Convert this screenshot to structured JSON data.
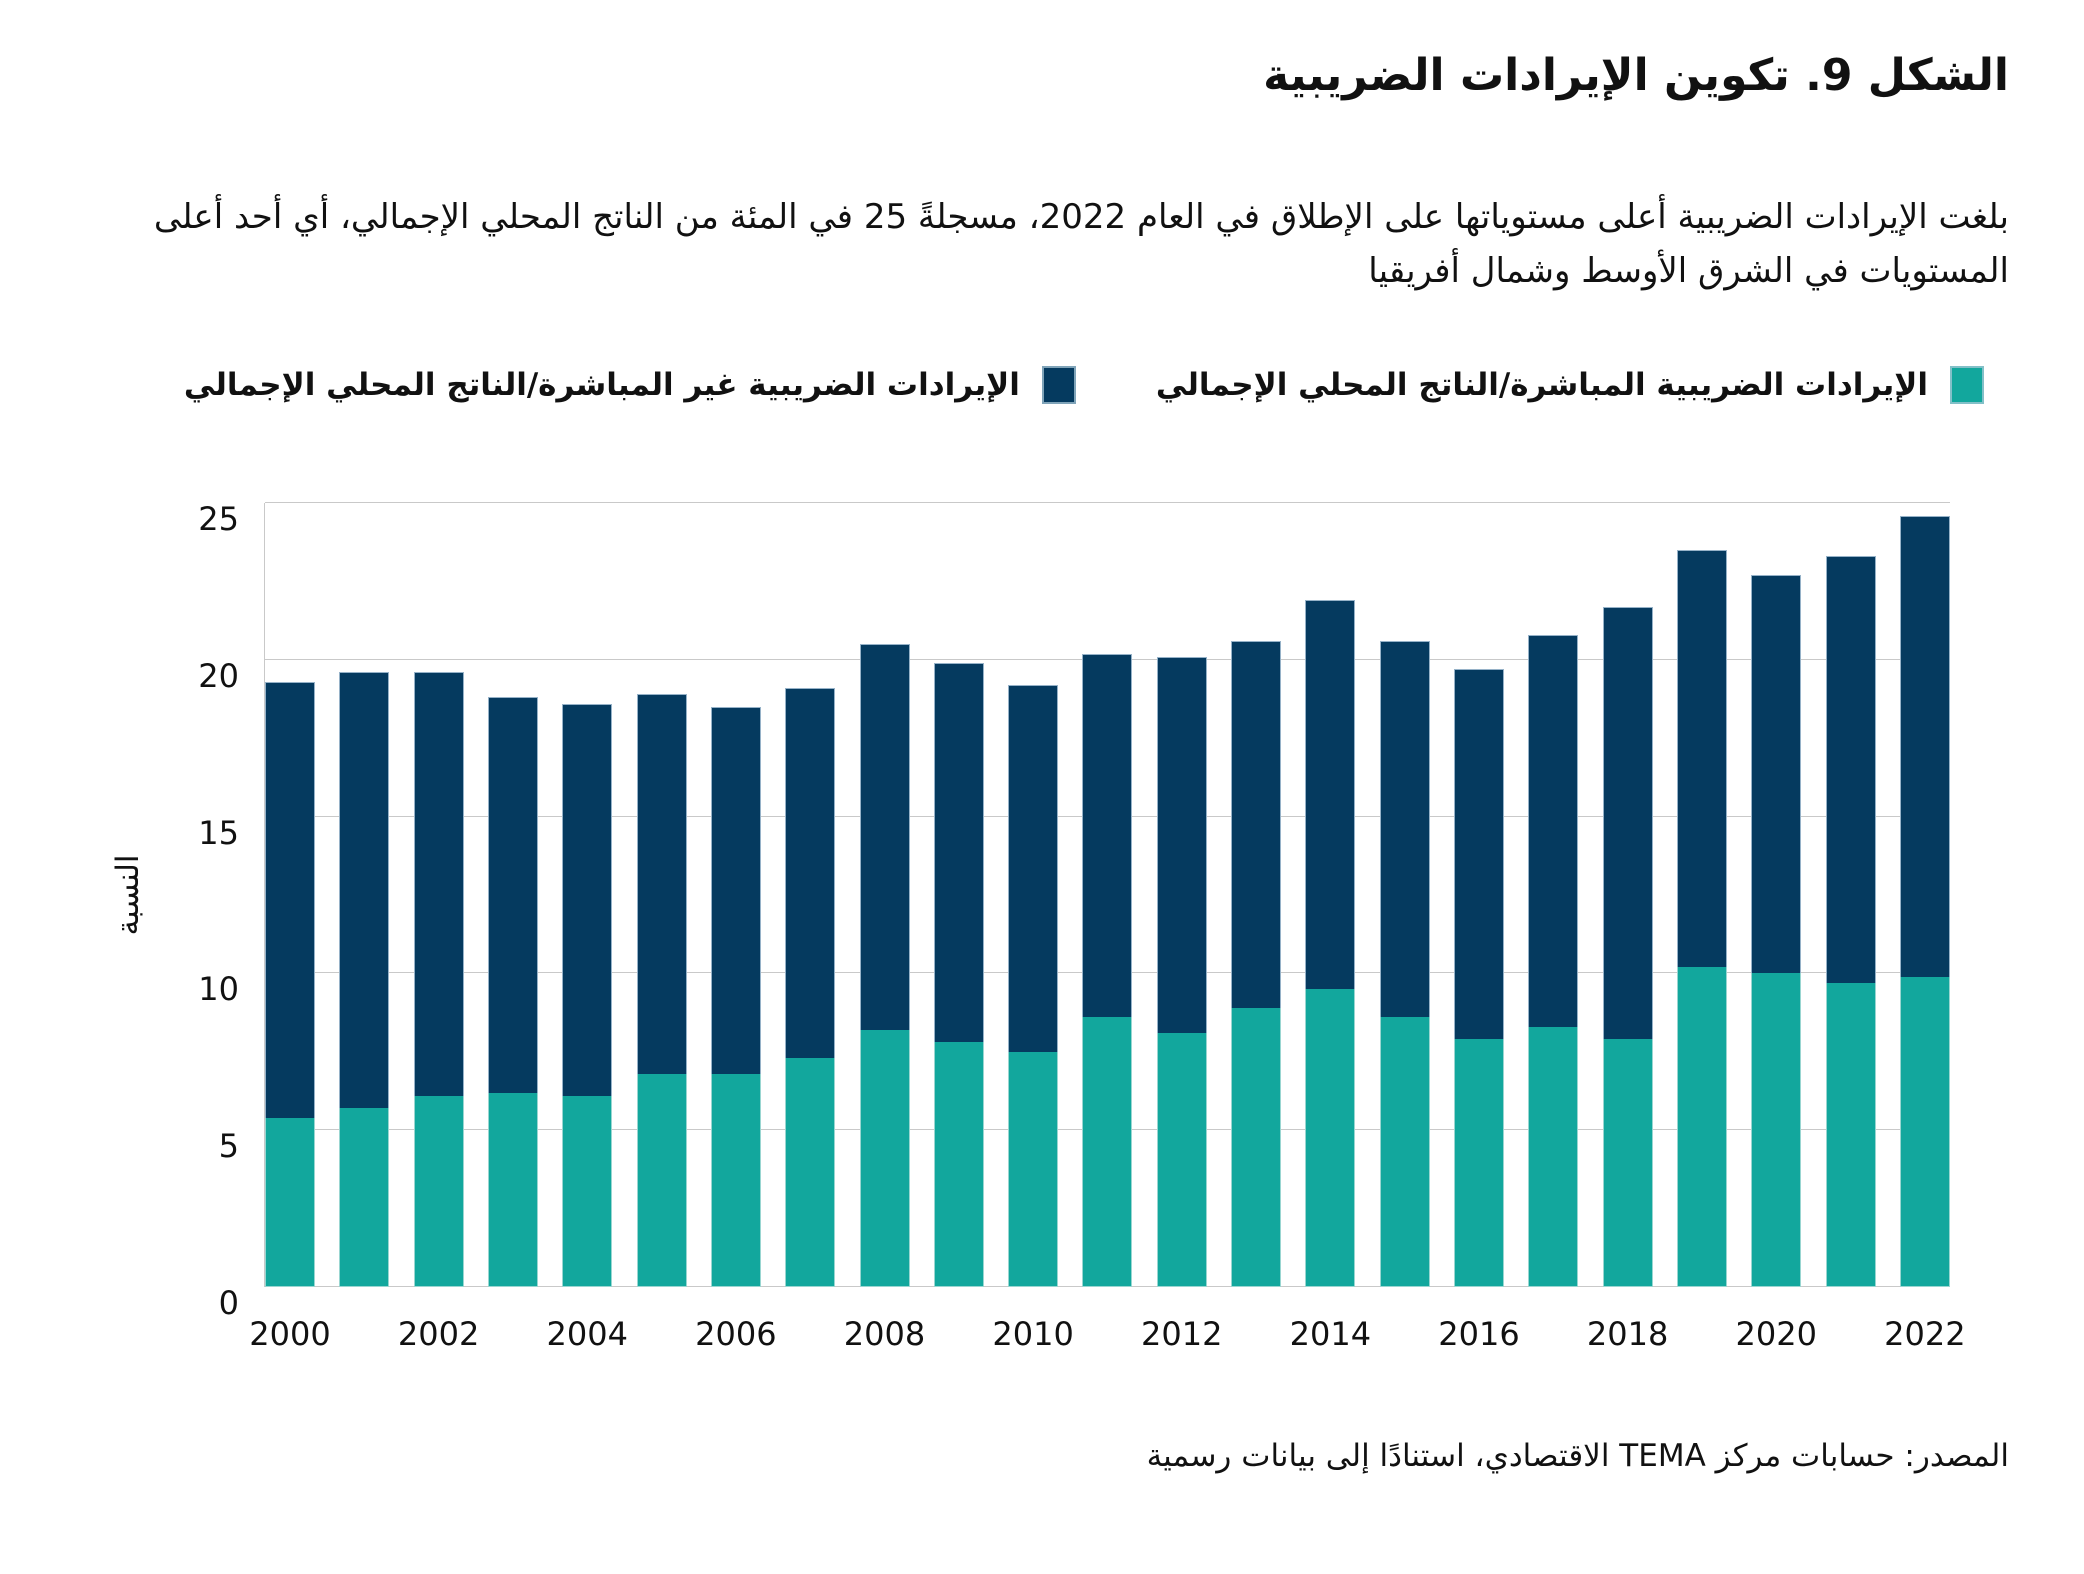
{
  "figure": {
    "title": "الشكل 9. تكوين الإيرادات الضريبية",
    "subtitle": "بلغت الإيرادات الضريبية أعلى مستوياتها على الإطلاق في العام 2022، مسجلةً 25 في المئة من الناتج المحلي الإجمالي، أي أحد أعلى المستويات في الشرق الأوسط وشمال أفريقيا",
    "source": "المصدر: حسابات مركز TEMA الاقتصادي، استنادًا إلى بيانات رسمية"
  },
  "legend": [
    {
      "label": "الإيرادات الضريبية المباشرة/الناتج المحلي الإجمالي",
      "color": "#12A79D"
    },
    {
      "label": "الإيرادات الضريبية غير المباشرة/الناتج المحلي الإجمالي",
      "color": "#053A5F"
    }
  ],
  "colors": {
    "direct_teal": "#12A79D",
    "indirect_navy": "#053A5F",
    "gridline": "#c9c9c9",
    "text": "#111111"
  },
  "chart_data": {
    "type": "bar",
    "stacked": true,
    "title": "الشكل 9. تكوين الإيرادات الضريبية",
    "xlabel": "",
    "ylabel": "النسبة",
    "ylim": [
      0,
      25
    ],
    "yticks": [
      0,
      5,
      10,
      15,
      20,
      25
    ],
    "grid": true,
    "legend_position": "top",
    "categories": [
      2000,
      2001,
      2002,
      2003,
      2004,
      2005,
      2006,
      2007,
      2008,
      2009,
      2010,
      2011,
      2012,
      2013,
      2014,
      2015,
      2016,
      2017,
      2018,
      2019,
      2020,
      2021,
      2022
    ],
    "x_tick_years": [
      2000,
      2002,
      2004,
      2006,
      2008,
      2010,
      2012,
      2014,
      2016,
      2018,
      2020,
      2022
    ],
    "series": [
      {
        "name": "الإيرادات الضريبية المباشرة/الناتج المحلي الإجمالي",
        "color": "#12A79D",
        "values": [
          5.4,
          5.7,
          6.1,
          6.2,
          6.1,
          6.8,
          6.8,
          7.3,
          8.2,
          7.8,
          7.5,
          8.6,
          8.1,
          8.9,
          9.5,
          8.6,
          7.9,
          8.3,
          7.9,
          10.2,
          10.0,
          9.7,
          9.9
        ]
      },
      {
        "name": "الإيرادات الضريبية غير المباشرة/الناتج المحلي الإجمالي",
        "color": "#053A5F",
        "values": [
          13.9,
          13.9,
          13.5,
          12.6,
          12.5,
          12.1,
          11.7,
          11.8,
          12.3,
          12.1,
          11.7,
          11.6,
          12.0,
          11.7,
          12.4,
          12.0,
          11.8,
          12.5,
          13.8,
          13.3,
          12.7,
          13.6,
          14.7
        ]
      }
    ],
    "totals": [
      19.3,
      19.6,
      19.6,
      18.8,
      18.6,
      18.9,
      18.5,
      19.1,
      20.5,
      19.9,
      19.2,
      20.2,
      20.1,
      20.6,
      21.9,
      20.6,
      19.7,
      20.8,
      21.7,
      23.5,
      22.7,
      23.3,
      24.6
    ]
  }
}
